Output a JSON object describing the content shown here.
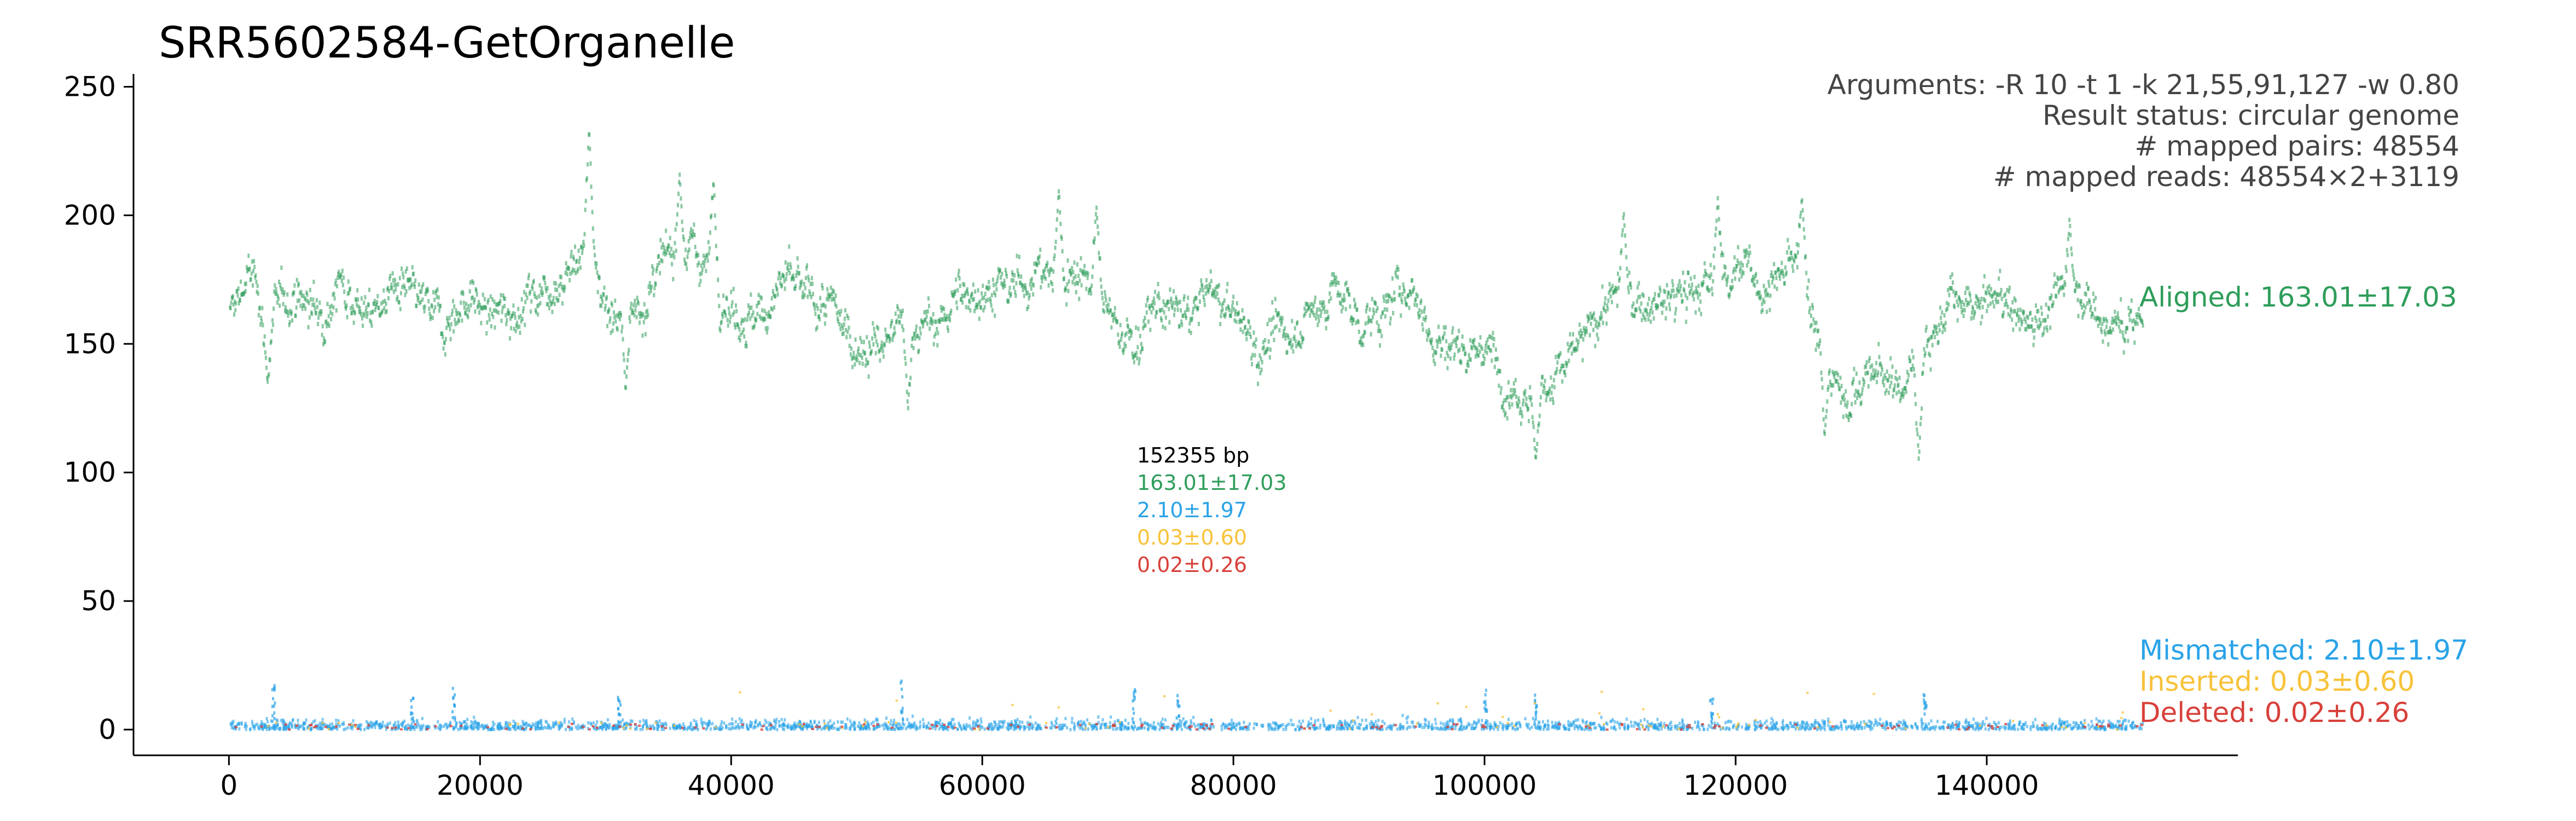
{
  "chart_data": {
    "type": "scatter",
    "title": "SRR5602584-GetOrganelle",
    "xlabel": "",
    "ylabel": "",
    "xlim": [
      -7600,
      160000
    ],
    "ylim": [
      -10,
      255
    ],
    "x_ticks": [
      0,
      20000,
      40000,
      60000,
      80000,
      100000,
      120000,
      140000
    ],
    "y_ticks": [
      0,
      50,
      100,
      150,
      200,
      250
    ],
    "genome_length": 152355,
    "grid": false,
    "info_lines": [
      "Arguments: -R 10 -t 1 -k 21,55,91,127 -w 0.80",
      "Result status: circular genome",
      "# mapped pairs: 48554",
      "# mapped reads: 48554×2+3119"
    ],
    "center_labels": [
      "152355 bp",
      "163.01±17.03",
      "2.10±1.97",
      "0.03±0.60",
      "0.02±0.26"
    ],
    "series": [
      {
        "name": "Aligned: 163.01±17.03",
        "color": "#2e9d5a",
        "mean": 163.01,
        "std": 17.03,
        "depth_profile": [
          [
            0,
            160
          ],
          [
            1500,
            178
          ],
          [
            3000,
            158
          ],
          [
            5000,
            170
          ],
          [
            7000,
            162
          ],
          [
            9000,
            175
          ],
          [
            11000,
            160
          ],
          [
            13000,
            172
          ],
          [
            15000,
            165
          ],
          [
            17000,
            158
          ],
          [
            19000,
            168
          ],
          [
            21000,
            160
          ],
          [
            23000,
            165
          ],
          [
            25000,
            172
          ],
          [
            27000,
            178
          ],
          [
            28500,
            190
          ],
          [
            30000,
            165
          ],
          [
            32000,
            160
          ],
          [
            34000,
            175
          ],
          [
            36000,
            190
          ],
          [
            38000,
            182
          ],
          [
            40000,
            165
          ],
          [
            42000,
            158
          ],
          [
            44000,
            175
          ],
          [
            46000,
            168
          ],
          [
            48000,
            162
          ],
          [
            50000,
            150
          ],
          [
            52000,
            148
          ],
          [
            54000,
            160
          ],
          [
            56000,
            155
          ],
          [
            58000,
            168
          ],
          [
            60000,
            172
          ],
          [
            62000,
            170
          ],
          [
            64000,
            178
          ],
          [
            66000,
            175
          ],
          [
            68000,
            180
          ],
          [
            70000,
            160
          ],
          [
            72000,
            150
          ],
          [
            74000,
            165
          ],
          [
            76000,
            160
          ],
          [
            78000,
            170
          ],
          [
            80000,
            162
          ],
          [
            82000,
            148
          ],
          [
            84000,
            155
          ],
          [
            86000,
            160
          ],
          [
            88000,
            172
          ],
          [
            90000,
            158
          ],
          [
            92000,
            162
          ],
          [
            94000,
            175
          ],
          [
            96000,
            150
          ],
          [
            98000,
            150
          ],
          [
            100000,
            148
          ],
          [
            102000,
            135
          ],
          [
            104000,
            128
          ],
          [
            106000,
            140
          ],
          [
            108000,
            152
          ],
          [
            110000,
            170
          ],
          [
            112000,
            165
          ],
          [
            114000,
            165
          ],
          [
            116000,
            170
          ],
          [
            118000,
            172
          ],
          [
            120000,
            182
          ],
          [
            122000,
            172
          ],
          [
            124000,
            178
          ],
          [
            125500,
            180
          ],
          [
            127000,
            140
          ],
          [
            129000,
            130
          ],
          [
            131000,
            140
          ],
          [
            133000,
            132
          ],
          [
            135000,
            150
          ],
          [
            137000,
            165
          ],
          [
            139000,
            162
          ],
          [
            141000,
            170
          ],
          [
            143000,
            158
          ],
          [
            145000,
            165
          ],
          [
            147000,
            175
          ],
          [
            149000,
            160
          ],
          [
            151000,
            155
          ],
          [
            152355,
            160
          ]
        ],
        "peaks": [
          [
            28600,
            240
          ],
          [
            35800,
            220
          ],
          [
            38500,
            218
          ],
          [
            66000,
            214
          ],
          [
            69000,
            206
          ],
          [
            111000,
            205
          ],
          [
            118500,
            211
          ],
          [
            125200,
            209
          ],
          [
            146500,
            202
          ]
        ],
        "troughs": [
          [
            3000,
            133
          ],
          [
            31500,
            128
          ],
          [
            54000,
            120
          ],
          [
            104000,
            103
          ],
          [
            127000,
            111
          ],
          [
            134500,
            102
          ]
        ]
      },
      {
        "name": "Mismatched: 2.10±1.97",
        "color": "#2aa3e8",
        "mean": 2.1,
        "std": 1.97,
        "spikes": [
          [
            3500,
            18
          ],
          [
            14500,
            15
          ],
          [
            17800,
            16
          ],
          [
            31000,
            14
          ],
          [
            53500,
            20
          ],
          [
            72000,
            18
          ],
          [
            75500,
            14
          ],
          [
            100000,
            17
          ],
          [
            104000,
            14
          ],
          [
            118000,
            12
          ],
          [
            135000,
            14
          ]
        ]
      },
      {
        "name": "Inserted: 0.03±0.60",
        "color": "#f8c23a",
        "mean": 0.03,
        "std": 0.6
      },
      {
        "name": "Deleted: 0.02±0.26",
        "color": "#d8403a",
        "mean": 0.02,
        "std": 0.26
      }
    ]
  }
}
